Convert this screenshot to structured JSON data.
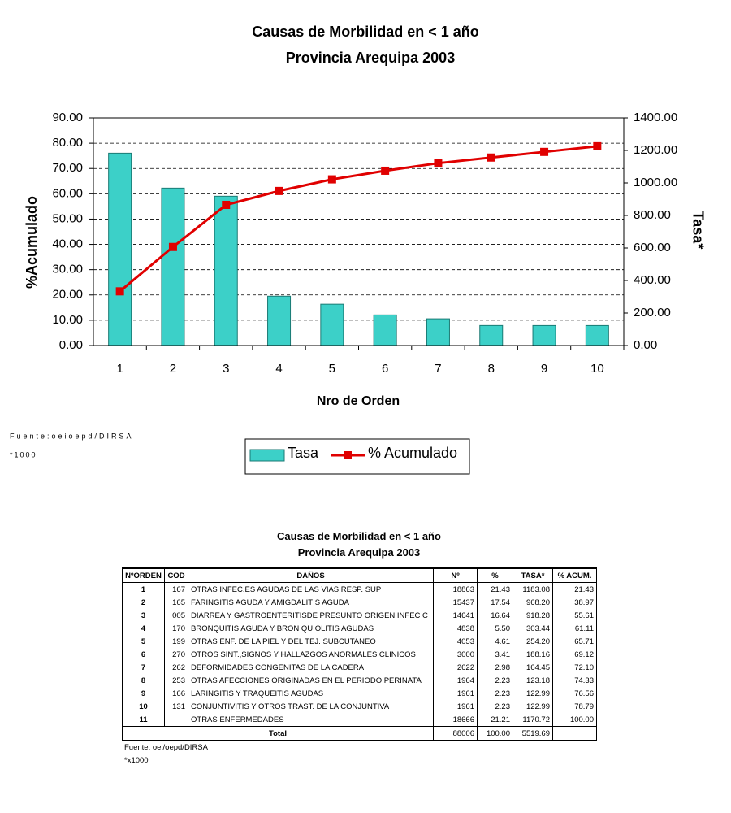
{
  "chart_data": {
    "type": "bar_line",
    "title": "Causas de Morbilidad en < 1 año",
    "subtitle": "Provincia Arequipa 2003",
    "xlabel": "Nro de Orden",
    "ylabel": "%Acumulado",
    "y2label": "Tasa*",
    "notes": [
      "Fuente:oeioepd/DIRSA",
      "*1000"
    ],
    "categories": [
      "1",
      "2",
      "3",
      "4",
      "5",
      "6",
      "7",
      "8",
      "9",
      "10"
    ],
    "series": [
      {
        "name": "Tasa",
        "kind": "bar",
        "axis": "y2",
        "color": "#3cd0c8",
        "values": [
          1183.08,
          968.2,
          918.28,
          303.44,
          254.2,
          188.16,
          164.45,
          123.18,
          122.99,
          122.99
        ]
      },
      {
        "name": "% Acumulado",
        "kind": "line",
        "axis": "y",
        "color": "#e00000",
        "values": [
          21.43,
          38.97,
          55.61,
          61.11,
          65.71,
          69.12,
          72.1,
          74.33,
          76.56,
          78.79
        ]
      }
    ],
    "ylim": [
      0,
      90
    ],
    "yticks": [
      {
        "value": 0,
        "label": "0.00"
      },
      {
        "value": 10,
        "label": "10.00"
      },
      {
        "value": 20,
        "label": "20.00"
      },
      {
        "value": 30,
        "label": "30.00"
      },
      {
        "value": 40,
        "label": "40.00"
      },
      {
        "value": 50,
        "label": "50.00"
      },
      {
        "value": 60,
        "label": "60.00"
      },
      {
        "value": 70,
        "label": "70.00"
      },
      {
        "value": 80,
        "label": "80.00"
      },
      {
        "value": 90,
        "label": "90.00"
      }
    ],
    "y2lim": [
      0,
      1400
    ],
    "y2ticks": [
      {
        "value": 0,
        "label": "0.00"
      },
      {
        "value": 200,
        "label": "200.00"
      },
      {
        "value": 400,
        "label": "400.00"
      },
      {
        "value": 600,
        "label": "600.00"
      },
      {
        "value": 800,
        "label": "800.00"
      },
      {
        "value": 1000,
        "label": "1000.00"
      },
      {
        "value": 1200,
        "label": "1200.00"
      },
      {
        "value": 1400,
        "label": "1400.00"
      }
    ],
    "grid": true,
    "legend": "bottom"
  },
  "table": {
    "title": "Causas de Morbilidad en < 1 año",
    "subtitle": "Provincia Arequipa 2003",
    "header": [
      "NºORDEN",
      "COD",
      "DAÑOS",
      "Nº",
      "%",
      "TASA*",
      "% ACUM."
    ],
    "rows": [
      [
        "1",
        "167",
        "OTRAS INFEC.ES AGUDAS DE LAS VIAS RESP. SUP",
        "18863",
        "21.43",
        "1183.08",
        "21.43"
      ],
      [
        "2",
        "165",
        "FARINGITIS AGUDA Y AMIGDALITIS AGUDA",
        "15437",
        "17.54",
        "968.20",
        "38.97"
      ],
      [
        "3",
        "005",
        "DIARREA Y GASTROENTERITISDE PRESUNTO ORIGEN INFEC C",
        "14641",
        "16.64",
        "918.28",
        "55.61"
      ],
      [
        "4",
        "170",
        "BRONQUITIS AGUDA Y BRON  QUIOLITIS AGUDAS",
        "4838",
        "5.50",
        "303.44",
        "61.11"
      ],
      [
        "5",
        "199",
        "OTRAS ENF. DE LA PIEL Y  DEL TEJ. SUBCUTANEO",
        "4053",
        "4.61",
        "254.20",
        "65.71"
      ],
      [
        "6",
        "270",
        "OTROS SINT.,SIGNOS Y HALLAZGOS ANORMALES CLINICOS",
        "3000",
        "3.41",
        "188.16",
        "69.12"
      ],
      [
        "7",
        "262",
        "DEFORMIDADES CONGENITAS DE LA CADERA",
        "2622",
        "2.98",
        "164.45",
        "72.10"
      ],
      [
        "8",
        "253",
        "OTRAS AFECCIONES ORIGINADAS EN EL PERIODO PERINATA",
        "1964",
        "2.23",
        "123.18",
        "74.33"
      ],
      [
        "9",
        "166",
        "LARINGITIS Y TRAQUEITIS AGUDAS",
        "1961",
        "2.23",
        "122.99",
        "76.56"
      ],
      [
        "10",
        "131",
        "CONJUNTIVITIS Y OTROS TRAST. DE LA CONJUNTIVA",
        "1961",
        "2.23",
        "122.99",
        "78.79"
      ],
      [
        "11",
        null,
        "OTRAS ENFERMEDADES",
        "18666",
        "21.21",
        "1170.72",
        "100.00"
      ]
    ],
    "total": [
      "Total",
      "88006",
      "100.00",
      "5519.69"
    ],
    "notes": [
      "Fuente: oei/oepd/DIRSA",
      "*x1000"
    ]
  }
}
